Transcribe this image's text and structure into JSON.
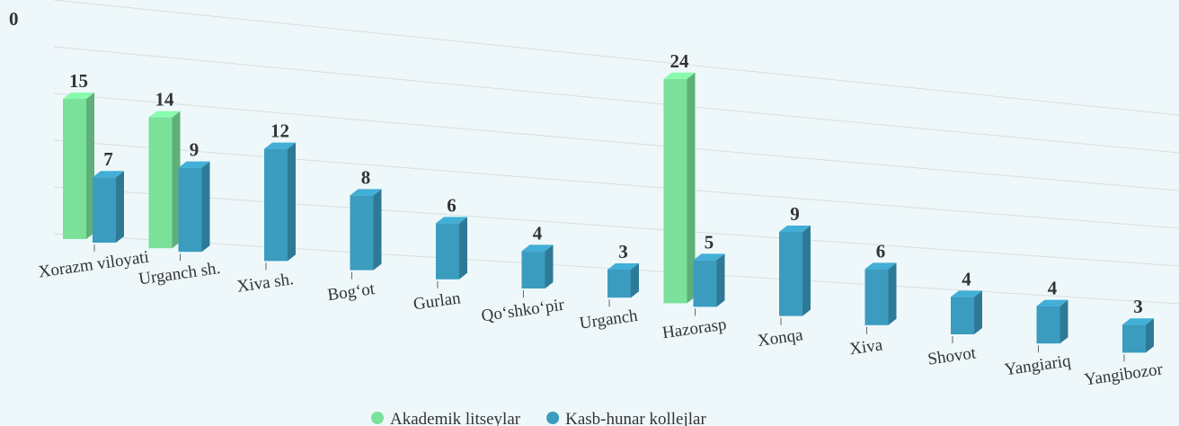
{
  "chart_data": {
    "type": "bar3d",
    "corner_label": "0",
    "categories": [
      "Xorazm viloyati",
      "Urganch sh.",
      "Xiva sh.",
      "Bog‘ot",
      "Gurlan",
      "Qo‘shko‘pir",
      "Urganch",
      "Hazorasp",
      "Xonqa",
      "Xiva",
      "Shovot",
      "Yangiariq",
      "Yangibozor"
    ],
    "series": [
      {
        "name": "Akademik litseylar",
        "color": "#7ae09a",
        "values": [
          15,
          14,
          null,
          null,
          null,
          null,
          null,
          24,
          null,
          null,
          null,
          null,
          null
        ]
      },
      {
        "name": "Kasb-hunar kollejlar",
        "color": "#3b9cc0",
        "values": [
          7,
          9,
          12,
          8,
          6,
          4,
          3,
          5,
          9,
          6,
          4,
          4,
          3
        ]
      }
    ],
    "ylim": [
      0,
      25
    ],
    "legend": "bottom"
  }
}
